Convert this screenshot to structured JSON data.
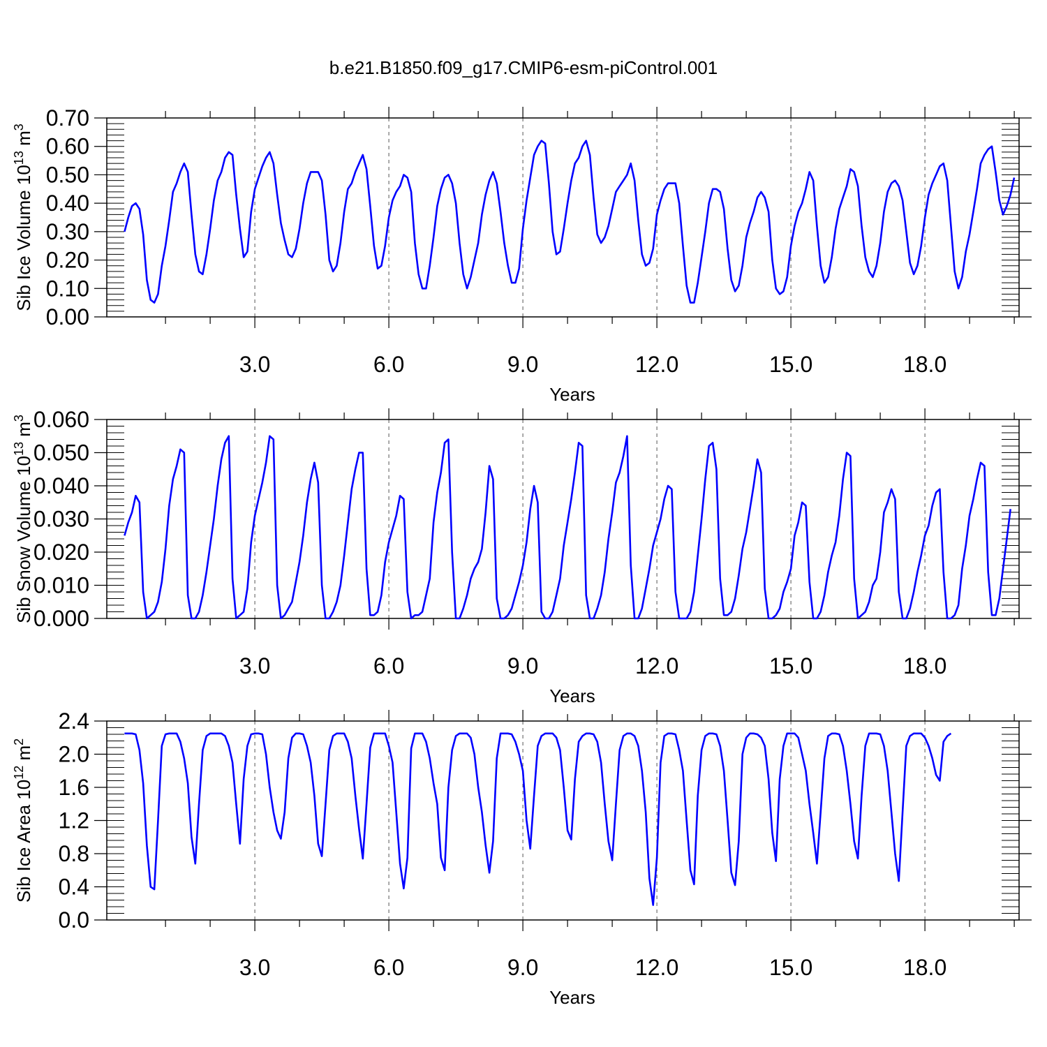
{
  "title": "b.e21.B1850.f09_g17.CMIP6-esm-piControl.001",
  "line_color": "#0000ff",
  "chart_data": [
    {
      "type": "line",
      "title": "b.e21.B1850.f09_g17.CMIP6-esm-piControl.001",
      "xlabel": "Years",
      "ylabel": {
        "main": "Sib Ice Volume 10",
        "exp": "13",
        "mid": " m",
        "exp2": "3"
      },
      "xlim": [
        0.1,
        20.0
      ],
      "ylim": [
        0.0,
        0.7
      ],
      "xticks": [
        "3.0",
        "6.0",
        "9.0",
        "12.0",
        "15.0",
        "18.0"
      ],
      "xtick_values": [
        3,
        6,
        9,
        12,
        15,
        18
      ],
      "yticks": [
        "0.00",
        "0.10",
        "0.20",
        "0.30",
        "0.40",
        "0.50",
        "0.60",
        "0.70"
      ],
      "ytick_values": [
        0,
        0.1,
        0.2,
        0.3,
        0.4,
        0.5,
        0.6,
        0.7
      ],
      "yminor_step": 0.02,
      "grid": "vertical dashed at major x ticks",
      "series": [
        {
          "x_start": 0.0833,
          "x_step": 0.08333,
          "values": [
            0.3,
            0.35,
            0.39,
            0.4,
            0.38,
            0.29,
            0.13,
            0.06,
            0.05,
            0.08,
            0.18,
            0.25,
            0.34,
            0.44,
            0.47,
            0.51,
            0.54,
            0.51,
            0.36,
            0.22,
            0.16,
            0.15,
            0.22,
            0.31,
            0.41,
            0.48,
            0.51,
            0.56,
            0.58,
            0.57,
            0.43,
            0.31,
            0.21,
            0.23,
            0.37,
            0.45,
            0.49,
            0.53,
            0.56,
            0.58,
            0.54,
            0.43,
            0.33,
            0.27,
            0.22,
            0.21,
            0.24,
            0.31,
            0.4,
            0.47,
            0.51,
            0.51,
            0.51,
            0.48,
            0.36,
            0.2,
            0.16,
            0.18,
            0.26,
            0.37,
            0.45,
            0.47,
            0.51,
            0.54,
            0.57,
            0.52,
            0.39,
            0.25,
            0.17,
            0.18,
            0.25,
            0.35,
            0.41,
            0.44,
            0.46,
            0.5,
            0.49,
            0.44,
            0.26,
            0.15,
            0.1,
            0.1,
            0.18,
            0.28,
            0.39,
            0.45,
            0.49,
            0.5,
            0.47,
            0.4,
            0.26,
            0.15,
            0.1,
            0.14,
            0.2,
            0.26,
            0.36,
            0.43,
            0.48,
            0.51,
            0.47,
            0.37,
            0.26,
            0.18,
            0.12,
            0.12,
            0.17,
            0.31,
            0.41,
            0.49,
            0.57,
            0.6,
            0.62,
            0.61,
            0.47,
            0.3,
            0.22,
            0.23,
            0.31,
            0.4,
            0.48,
            0.54,
            0.56,
            0.6,
            0.62,
            0.57,
            0.42,
            0.29,
            0.26,
            0.28,
            0.32,
            0.38,
            0.44,
            0.46,
            0.48,
            0.5,
            0.54,
            0.48,
            0.34,
            0.22,
            0.18,
            0.19,
            0.24,
            0.36,
            0.41,
            0.45,
            0.47,
            0.47,
            0.47,
            0.4,
            0.25,
            0.11,
            0.05,
            0.05,
            0.12,
            0.21,
            0.3,
            0.4,
            0.45,
            0.45,
            0.44,
            0.38,
            0.24,
            0.13,
            0.09,
            0.11,
            0.18,
            0.28,
            0.33,
            0.37,
            0.42,
            0.44,
            0.42,
            0.37,
            0.2,
            0.1,
            0.08,
            0.09,
            0.14,
            0.25,
            0.32,
            0.37,
            0.4,
            0.45,
            0.51,
            0.48,
            0.32,
            0.18,
            0.12,
            0.14,
            0.21,
            0.31,
            0.38,
            0.42,
            0.46,
            0.52,
            0.51,
            0.46,
            0.32,
            0.21,
            0.16,
            0.14,
            0.18,
            0.26,
            0.37,
            0.44,
            0.47,
            0.48,
            0.46,
            0.41,
            0.3,
            0.19,
            0.15,
            0.18,
            0.25,
            0.35,
            0.43,
            0.47,
            0.5,
            0.53,
            0.54,
            0.48,
            0.32,
            0.16,
            0.1,
            0.14,
            0.23,
            0.29,
            0.37,
            0.45,
            0.54,
            0.57,
            0.59,
            0.6,
            0.51,
            0.41,
            0.36,
            0.39,
            0.43,
            0.49
          ]
        }
      ]
    },
    {
      "type": "line",
      "xlabel": "Years",
      "ylabel": {
        "main": "Sib Snow Volume 10",
        "exp": "13",
        "mid": " m",
        "exp2": "3"
      },
      "xlim": [
        0.1,
        20.0
      ],
      "ylim": [
        0.0,
        0.06
      ],
      "xticks": [
        "3.0",
        "6.0",
        "9.0",
        "12.0",
        "15.0",
        "18.0"
      ],
      "xtick_values": [
        3,
        6,
        9,
        12,
        15,
        18
      ],
      "yticks": [
        "0.000",
        "0.010",
        "0.020",
        "0.030",
        "0.040",
        "0.050",
        "0.060"
      ],
      "ytick_values": [
        0,
        0.01,
        0.02,
        0.03,
        0.04,
        0.05,
        0.06
      ],
      "yminor_step": 0.002,
      "grid": "vertical dashed at major x ticks",
      "series": [
        {
          "x_start": 0.0833,
          "x_step": 0.08333,
          "values": [
            0.025,
            0.029,
            0.032,
            0.037,
            0.035,
            0.008,
            0.0,
            0.001,
            0.002,
            0.005,
            0.011,
            0.021,
            0.034,
            0.042,
            0.046,
            0.051,
            0.05,
            0.007,
            0.0,
            0.0,
            0.002,
            0.007,
            0.014,
            0.022,
            0.03,
            0.04,
            0.048,
            0.053,
            0.055,
            0.012,
            0.0,
            0.001,
            0.002,
            0.009,
            0.023,
            0.031,
            0.036,
            0.041,
            0.047,
            0.055,
            0.054,
            0.01,
            0.0,
            0.001,
            0.003,
            0.005,
            0.011,
            0.017,
            0.025,
            0.035,
            0.042,
            0.047,
            0.041,
            0.01,
            0.0,
            0.0,
            0.002,
            0.005,
            0.01,
            0.019,
            0.029,
            0.039,
            0.045,
            0.05,
            0.05,
            0.015,
            0.001,
            0.001,
            0.002,
            0.007,
            0.017,
            0.023,
            0.027,
            0.031,
            0.037,
            0.036,
            0.008,
            0.0,
            0.001,
            0.001,
            0.002,
            0.007,
            0.012,
            0.029,
            0.038,
            0.044,
            0.053,
            0.054,
            0.02,
            0.0,
            0.0,
            0.003,
            0.007,
            0.012,
            0.015,
            0.017,
            0.021,
            0.032,
            0.046,
            0.042,
            0.006,
            0.0,
            0.0,
            0.001,
            0.003,
            0.007,
            0.011,
            0.016,
            0.023,
            0.033,
            0.04,
            0.035,
            0.002,
            0.0,
            0.0,
            0.002,
            0.007,
            0.012,
            0.022,
            0.029,
            0.036,
            0.044,
            0.053,
            0.052,
            0.007,
            0.0,
            0.0,
            0.003,
            0.007,
            0.014,
            0.024,
            0.032,
            0.041,
            0.044,
            0.049,
            0.055,
            0.016,
            0.0,
            0.0,
            0.003,
            0.009,
            0.015,
            0.022,
            0.026,
            0.03,
            0.036,
            0.04,
            0.039,
            0.008,
            0.0,
            0.0,
            0.0,
            0.002,
            0.008,
            0.019,
            0.03,
            0.042,
            0.052,
            0.053,
            0.045,
            0.012,
            0.001,
            0.001,
            0.002,
            0.006,
            0.013,
            0.021,
            0.026,
            0.033,
            0.04,
            0.048,
            0.044,
            0.009,
            0.0,
            0.0,
            0.001,
            0.003,
            0.008,
            0.011,
            0.015,
            0.025,
            0.029,
            0.035,
            0.034,
            0.011,
            0.0,
            0.0,
            0.002,
            0.007,
            0.014,
            0.019,
            0.023,
            0.031,
            0.042,
            0.05,
            0.049,
            0.012,
            0.0,
            0.001,
            0.002,
            0.005,
            0.01,
            0.012,
            0.02,
            0.032,
            0.035,
            0.039,
            0.036,
            0.008,
            0.0,
            0.0,
            0.003,
            0.008,
            0.014,
            0.019,
            0.025,
            0.028,
            0.034,
            0.038,
            0.039,
            0.014,
            0.0,
            0.0,
            0.001,
            0.004,
            0.015,
            0.022,
            0.031,
            0.036,
            0.042,
            0.047,
            0.046,
            0.014,
            0.001,
            0.001,
            0.006,
            0.015,
            0.024,
            0.033
          ]
        }
      ]
    },
    {
      "type": "line",
      "xlabel": "Years",
      "ylabel": {
        "main": "Sib Ice Area 10",
        "exp": "12",
        "mid": " m",
        "exp2": "2"
      },
      "xlim": [
        0.1,
        20.0
      ],
      "ylim": [
        0.0,
        2.4
      ],
      "xticks": [
        "3.0",
        "6.0",
        "9.0",
        "12.0",
        "15.0",
        "18.0"
      ],
      "xtick_values": [
        3,
        6,
        9,
        12,
        15,
        18
      ],
      "yticks": [
        "0.0",
        "0.4",
        "0.8",
        "1.2",
        "1.6",
        "2.0",
        "2.4"
      ],
      "ytick_values": [
        0,
        0.4,
        0.8,
        1.2,
        1.6,
        2.0,
        2.4
      ],
      "yminor_step": 0.08,
      "grid": "vertical dashed at major x ticks",
      "series": [
        {
          "x_start": 0.0833,
          "x_step": 0.08333,
          "values": [
            2.25,
            2.25,
            2.25,
            2.24,
            2.05,
            1.65,
            0.9,
            0.4,
            0.37,
            1.2,
            2.1,
            2.24,
            2.25,
            2.25,
            2.25,
            2.15,
            1.95,
            1.65,
            1.0,
            0.68,
            1.4,
            2.05,
            2.22,
            2.25,
            2.25,
            2.25,
            2.25,
            2.22,
            2.1,
            1.9,
            1.4,
            0.92,
            1.7,
            2.1,
            2.24,
            2.25,
            2.25,
            2.24,
            2.0,
            1.6,
            1.3,
            1.08,
            0.98,
            1.3,
            1.95,
            2.2,
            2.25,
            2.25,
            2.24,
            2.1,
            1.9,
            1.5,
            0.92,
            0.77,
            1.4,
            2.05,
            2.22,
            2.25,
            2.25,
            2.25,
            2.15,
            1.95,
            1.5,
            1.1,
            0.74,
            1.4,
            2.08,
            2.25,
            2.25,
            2.25,
            2.25,
            2.1,
            1.9,
            1.3,
            0.68,
            0.38,
            0.75,
            2.07,
            2.25,
            2.25,
            2.25,
            2.15,
            1.95,
            1.65,
            1.4,
            0.75,
            0.6,
            1.6,
            2.05,
            2.22,
            2.25,
            2.25,
            2.25,
            2.2,
            2.0,
            1.6,
            1.3,
            0.9,
            0.57,
            0.95,
            1.95,
            2.25,
            2.25,
            2.25,
            2.24,
            2.15,
            2.0,
            1.8,
            1.2,
            0.86,
            1.5,
            2.1,
            2.22,
            2.25,
            2.25,
            2.25,
            2.2,
            2.05,
            1.6,
            1.08,
            0.97,
            1.7,
            2.15,
            2.22,
            2.25,
            2.25,
            2.24,
            2.15,
            1.9,
            1.4,
            0.95,
            0.72,
            1.4,
            2.05,
            2.22,
            2.25,
            2.25,
            2.22,
            2.1,
            1.8,
            1.3,
            0.5,
            0.18,
            0.75,
            1.9,
            2.22,
            2.25,
            2.25,
            2.24,
            2.05,
            1.8,
            1.2,
            0.6,
            0.43,
            1.5,
            2.05,
            2.22,
            2.25,
            2.25,
            2.24,
            2.1,
            1.8,
            1.2,
            0.57,
            0.42,
            0.95,
            2.0,
            2.2,
            2.25,
            2.25,
            2.24,
            2.2,
            2.1,
            1.7,
            1.05,
            0.71,
            1.7,
            2.1,
            2.25,
            2.25,
            2.25,
            2.2,
            2.0,
            1.8,
            1.4,
            1.05,
            0.68,
            1.3,
            1.95,
            2.22,
            2.25,
            2.25,
            2.24,
            2.1,
            1.8,
            1.4,
            0.95,
            0.74,
            1.5,
            2.1,
            2.25,
            2.25,
            2.25,
            2.24,
            2.1,
            1.8,
            1.3,
            0.8,
            0.47,
            1.3,
            2.1,
            2.22,
            2.25,
            2.25,
            2.25,
            2.2,
            2.1,
            1.95,
            1.75,
            1.68,
            2.15,
            2.22,
            2.25
          ]
        }
      ]
    }
  ]
}
